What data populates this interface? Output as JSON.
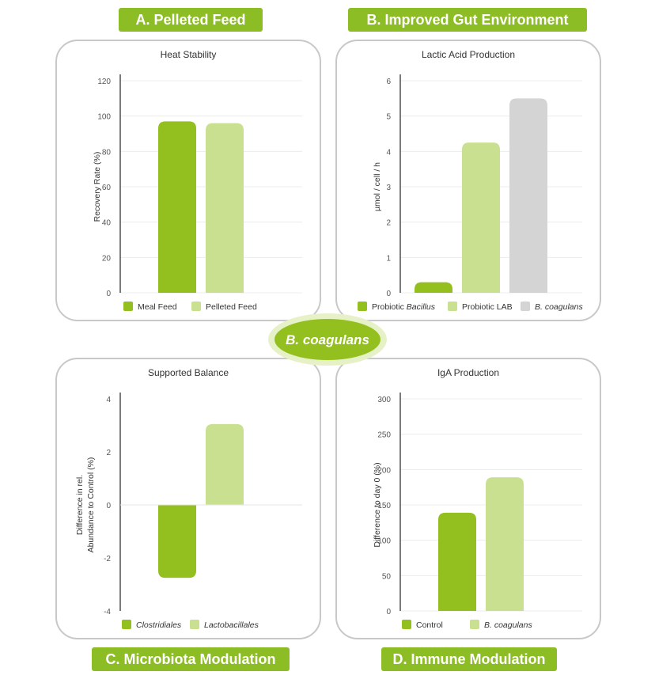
{
  "colors": {
    "primary": "#93c01f",
    "light": "#c9e090",
    "gray": "#d4d4d4",
    "label_bg": "#8dbd25"
  },
  "labels": {
    "a": "A. Pelleted Feed",
    "b": "B. Improved Gut Environment",
    "c": "C. Microbiota Modulation",
    "d": "D. Immune Modulation"
  },
  "center": {
    "text": "B. coagulans"
  },
  "chart_data": [
    {
      "type": "bar",
      "title": "Heat Stability",
      "ylabel": "Recovery Rate (%)",
      "ylim": [
        0,
        120
      ],
      "yticks": [
        0,
        20,
        40,
        60,
        80,
        100,
        120
      ],
      "categories": [
        "Meal Feed",
        "Pelleted Feed"
      ],
      "values": [
        97,
        96
      ],
      "legend": [
        "Meal Feed",
        "Pelleted Feed"
      ],
      "legend_italic": [
        false,
        false
      ],
      "color_keys": [
        "primary",
        "light"
      ],
      "grid": true,
      "legend_position": "bottom"
    },
    {
      "type": "bar",
      "title": "Lactic Acid Production",
      "ylabel": "µmol / cell / h",
      "ylim": [
        0,
        6
      ],
      "yticks": [
        0,
        1,
        2,
        3,
        4,
        5,
        6
      ],
      "categories": [
        "Probiotic Bacillus",
        "Probiotic LAB",
        "B. coagulans"
      ],
      "values": [
        0.3,
        4.25,
        5.5
      ],
      "legend": [
        [
          "Probiotic ",
          "Bacillus"
        ],
        [
          "Probiotic LAB",
          ""
        ],
        [
          "",
          "B. coagulans"
        ]
      ],
      "legend_italic": [
        true,
        false,
        true
      ],
      "color_keys": [
        "primary",
        "light",
        "gray"
      ],
      "grid": true,
      "legend_position": "bottom"
    },
    {
      "type": "bar",
      "title": "Supported Balance",
      "ylabel": [
        "Difference in rel.",
        "Abundance to Control (%)"
      ],
      "ylim": [
        -4,
        4
      ],
      "yticks": [
        -4,
        -2,
        0,
        2,
        4
      ],
      "categories": [
        "Clostridiales",
        "Lactobacillales"
      ],
      "values": [
        -2.75,
        3.05
      ],
      "legend": [
        "Clostridiales",
        "Lactobacillales"
      ],
      "legend_italic": [
        true,
        true
      ],
      "color_keys": [
        "primary",
        "light"
      ],
      "grid": false,
      "legend_position": "bottom"
    },
    {
      "type": "bar",
      "title": "IgA Production",
      "ylabel": "Difference to day 0 (%)",
      "ylim": [
        0,
        300
      ],
      "yticks": [
        0,
        50,
        100,
        150,
        200,
        250,
        300
      ],
      "categories": [
        "Control",
        "B. coagulans"
      ],
      "values": [
        139,
        189
      ],
      "legend": [
        "Control",
        "B. coagulans"
      ],
      "legend_italic": [
        false,
        true
      ],
      "color_keys": [
        "primary",
        "light"
      ],
      "grid": true,
      "legend_position": "bottom"
    }
  ]
}
